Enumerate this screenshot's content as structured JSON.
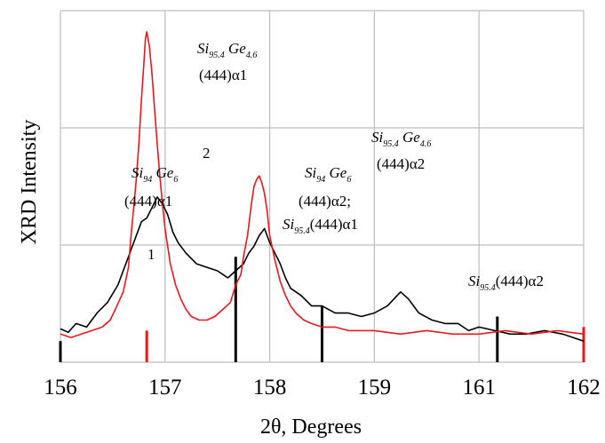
{
  "chart_data": {
    "type": "line",
    "xlabel": "2θ, Degrees",
    "ylabel": "XRD Intensity",
    "x_tick_labels": [
      "156",
      "157",
      "158",
      "159",
      "161",
      "162"
    ],
    "grid": true,
    "series": [
      {
        "name": "1",
        "color": "#000000",
        "points": [
          [
            0.0,
            0.095
          ],
          [
            0.03,
            0.085
          ],
          [
            0.06,
            0.11
          ],
          [
            0.1,
            0.1
          ],
          [
            0.14,
            0.14
          ],
          [
            0.18,
            0.17
          ],
          [
            0.22,
            0.22
          ],
          [
            0.26,
            0.3
          ],
          [
            0.29,
            0.36
          ],
          [
            0.31,
            0.4
          ],
          [
            0.33,
            0.41
          ],
          [
            0.35,
            0.44
          ],
          [
            0.37,
            0.47
          ],
          [
            0.39,
            0.45
          ],
          [
            0.41,
            0.42
          ],
          [
            0.43,
            0.37
          ],
          [
            0.45,
            0.34
          ],
          [
            0.48,
            0.31
          ],
          [
            0.52,
            0.28
          ],
          [
            0.56,
            0.27
          ],
          [
            0.6,
            0.26
          ],
          [
            0.64,
            0.24
          ],
          [
            0.67,
            0.26
          ],
          [
            0.7,
            0.28
          ],
          [
            0.72,
            0.31
          ],
          [
            0.74,
            0.33
          ],
          [
            0.76,
            0.36
          ],
          [
            0.78,
            0.38
          ],
          [
            0.8,
            0.34
          ],
          [
            0.82,
            0.31
          ],
          [
            0.84,
            0.28
          ],
          [
            0.86,
            0.24
          ],
          [
            0.88,
            0.21
          ],
          [
            0.92,
            0.19
          ],
          [
            0.96,
            0.16
          ],
          [
            1.0,
            0.16
          ],
          [
            1.05,
            0.14
          ],
          [
            1.1,
            0.14
          ],
          [
            1.15,
            0.13
          ],
          [
            1.2,
            0.14
          ],
          [
            1.25,
            0.16
          ],
          [
            1.3,
            0.2
          ],
          [
            1.33,
            0.18
          ],
          [
            1.37,
            0.14
          ],
          [
            1.42,
            0.12
          ],
          [
            1.47,
            0.11
          ],
          [
            1.52,
            0.11
          ],
          [
            1.56,
            0.09
          ],
          [
            1.6,
            0.1
          ],
          [
            1.66,
            0.09
          ],
          [
            1.72,
            0.08
          ],
          [
            1.78,
            0.08
          ],
          [
            1.85,
            0.09
          ],
          [
            1.92,
            0.08
          ],
          [
            2.0,
            0.06
          ]
        ]
      },
      {
        "name": "2",
        "color": "#e8191c",
        "points": [
          [
            0.0,
            0.08
          ],
          [
            0.04,
            0.07
          ],
          [
            0.08,
            0.08
          ],
          [
            0.12,
            0.09
          ],
          [
            0.16,
            0.1
          ],
          [
            0.19,
            0.12
          ],
          [
            0.21,
            0.15
          ],
          [
            0.24,
            0.2
          ],
          [
            0.26,
            0.27
          ],
          [
            0.27,
            0.36
          ],
          [
            0.28,
            0.44
          ],
          [
            0.29,
            0.52
          ],
          [
            0.3,
            0.62
          ],
          [
            0.31,
            0.75
          ],
          [
            0.32,
            0.86
          ],
          [
            0.325,
            0.92
          ],
          [
            0.33,
            0.94
          ],
          [
            0.34,
            0.9
          ],
          [
            0.35,
            0.82
          ],
          [
            0.36,
            0.72
          ],
          [
            0.37,
            0.62
          ],
          [
            0.38,
            0.53
          ],
          [
            0.39,
            0.45
          ],
          [
            0.4,
            0.38
          ],
          [
            0.41,
            0.33
          ],
          [
            0.42,
            0.28
          ],
          [
            0.44,
            0.22
          ],
          [
            0.46,
            0.18
          ],
          [
            0.48,
            0.15
          ],
          [
            0.5,
            0.13
          ],
          [
            0.53,
            0.12
          ],
          [
            0.56,
            0.12
          ],
          [
            0.59,
            0.13
          ],
          [
            0.62,
            0.15
          ],
          [
            0.65,
            0.17
          ],
          [
            0.67,
            0.22
          ],
          [
            0.69,
            0.25
          ],
          [
            0.7,
            0.3
          ],
          [
            0.715,
            0.36
          ],
          [
            0.73,
            0.45
          ],
          [
            0.74,
            0.5
          ],
          [
            0.75,
            0.52
          ],
          [
            0.76,
            0.53
          ],
          [
            0.77,
            0.51
          ],
          [
            0.78,
            0.48
          ],
          [
            0.79,
            0.43
          ],
          [
            0.8,
            0.36
          ],
          [
            0.82,
            0.29
          ],
          [
            0.84,
            0.23
          ],
          [
            0.86,
            0.19
          ],
          [
            0.88,
            0.16
          ],
          [
            0.9,
            0.14
          ],
          [
            0.93,
            0.12
          ],
          [
            0.96,
            0.11
          ],
          [
            1.0,
            0.1
          ],
          [
            1.05,
            0.1
          ],
          [
            1.1,
            0.09
          ],
          [
            1.2,
            0.09
          ],
          [
            1.3,
            0.08
          ],
          [
            1.4,
            0.09
          ],
          [
            1.5,
            0.08
          ],
          [
            1.6,
            0.08
          ],
          [
            1.7,
            0.09
          ],
          [
            1.8,
            0.08
          ],
          [
            1.9,
            0.09
          ],
          [
            2.0,
            0.08
          ]
        ]
      }
    ],
    "spikes": [
      {
        "pos": 0.0,
        "color": "#000000",
        "top": 0.06
      },
      {
        "pos": 0.33,
        "color": "#e8191c",
        "top": 0.09
      },
      {
        "pos": 0.67,
        "color": "#000000",
        "top": 0.3
      },
      {
        "pos": 1.0,
        "color": "#000000",
        "top": 0.16
      },
      {
        "pos": 1.67,
        "color": "#000000",
        "top": 0.13
      },
      {
        "pos": 2.0,
        "color": "#e8191c",
        "top": 0.1
      }
    ],
    "curve_labels": [
      {
        "text": "1",
        "series": "1"
      },
      {
        "text": "2",
        "series": "2"
      }
    ],
    "annotations": [
      {
        "formula": "Si95.4Ge4.6",
        "elements": [
          [
            "Si",
            "95.4"
          ],
          [
            "Ge",
            "4.6"
          ]
        ],
        "reflection": "(444)α1"
      },
      {
        "formula": "Si94Ge6",
        "elements": [
          [
            "Si",
            "94"
          ],
          [
            "Ge",
            "6"
          ]
        ],
        "reflection": "(444)α1"
      },
      {
        "formula": "Si94Ge6",
        "elements": [
          [
            "Si",
            "94"
          ],
          [
            "Ge",
            "6"
          ]
        ],
        "reflection": "(444)α2;"
      },
      {
        "formula": "Si95.4(444)α1",
        "elements": [
          [
            "Si",
            "95.4"
          ]
        ],
        "reflection": "(444)α1"
      },
      {
        "formula": "Si95.4Ge4.6",
        "elements": [
          [
            "Si",
            "95.4"
          ],
          [
            "Ge",
            "4.6"
          ]
        ],
        "reflection": "(444)α2"
      },
      {
        "formula": "Si95.4(444)α2",
        "elements": [
          [
            "Si",
            "95.4"
          ]
        ],
        "reflection": "(444)α2"
      }
    ]
  }
}
